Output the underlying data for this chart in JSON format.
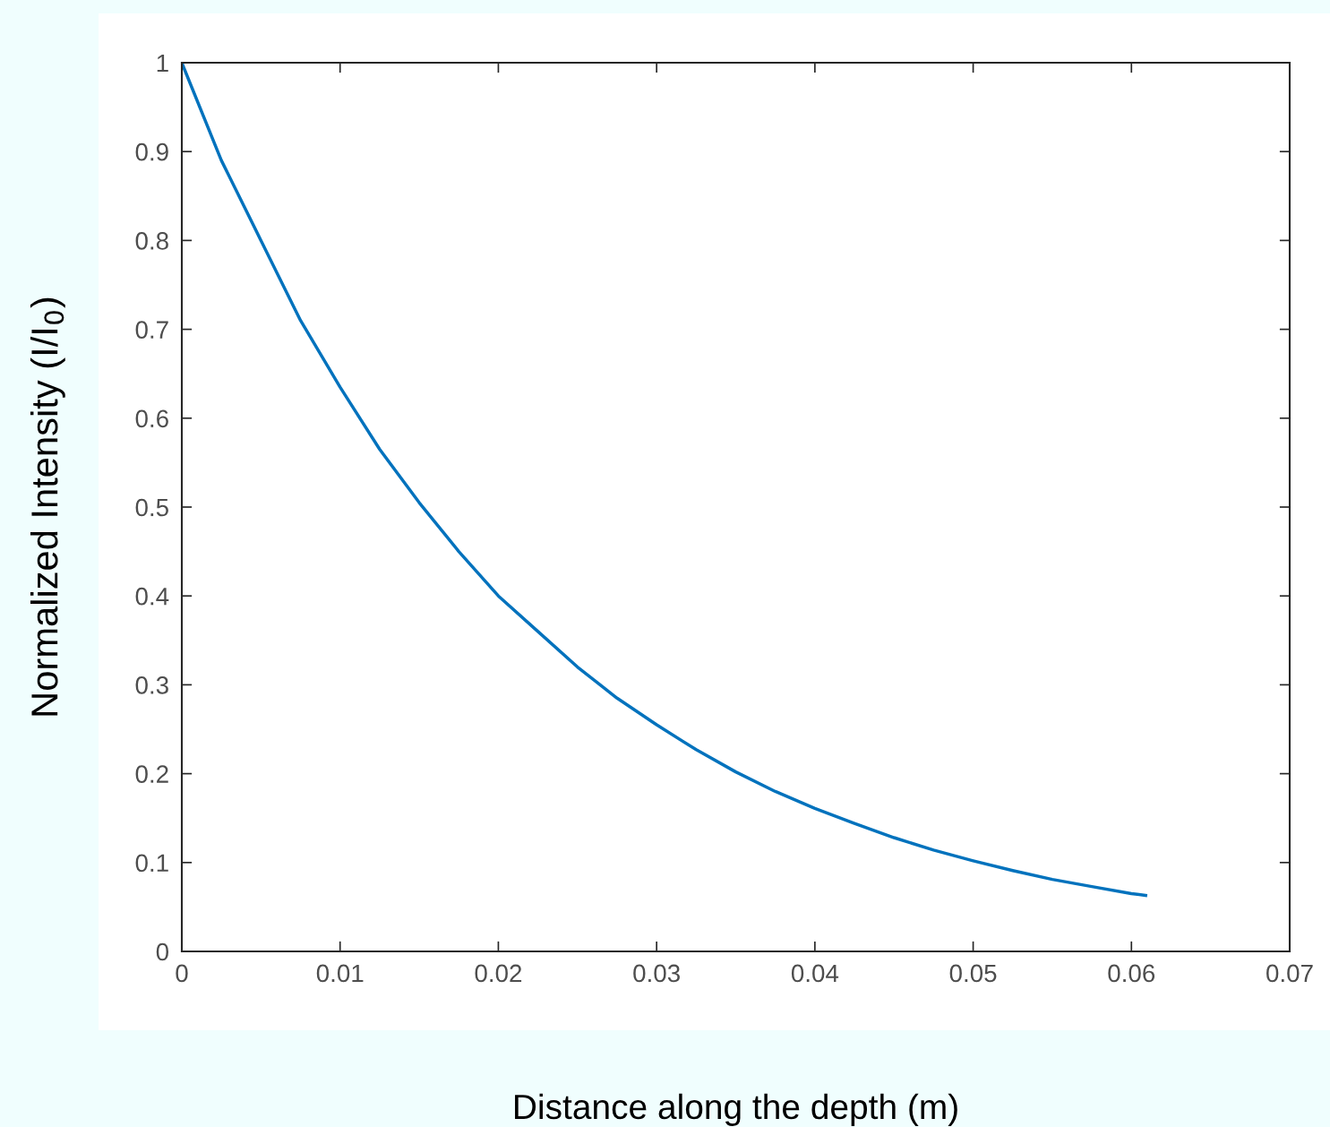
{
  "chart_data": {
    "type": "line",
    "xlabel": "Distance along the depth (m)",
    "ylabel": "Normalized Intensity (I/I$_{0}$)",
    "x": [
      0,
      0.0025,
      0.005,
      0.0075,
      0.01,
      0.0125,
      0.015,
      0.0175,
      0.02,
      0.0225,
      0.025,
      0.0275,
      0.03,
      0.0325,
      0.035,
      0.0375,
      0.04,
      0.0425,
      0.045,
      0.0475,
      0.05,
      0.0525,
      0.055,
      0.0575,
      0.06,
      0.0609
    ],
    "series": [
      {
        "color": "#0072bd",
        "values": [
          1.0,
          0.89,
          0.8,
          0.71,
          0.635,
          0.565,
          0.505,
          0.45,
          0.4,
          0.36,
          0.32,
          0.285,
          0.255,
          0.227,
          0.202,
          0.18,
          0.161,
          0.144,
          0.128,
          0.114,
          0.102,
          0.091,
          0.081,
          0.073,
          0.065,
          0.063
        ]
      }
    ],
    "xlim": [
      0,
      0.07
    ],
    "xticks": [
      0,
      0.01,
      0.02,
      0.03,
      0.04,
      0.05,
      0.06,
      0.07
    ],
    "ylim": [
      0,
      1
    ],
    "yticks": [
      0,
      0.1,
      0.2,
      0.3,
      0.4,
      0.5,
      0.6,
      0.7,
      0.8,
      0.9,
      1
    ],
    "grid": false,
    "marker": "none",
    "line_style": "solid"
  }
}
